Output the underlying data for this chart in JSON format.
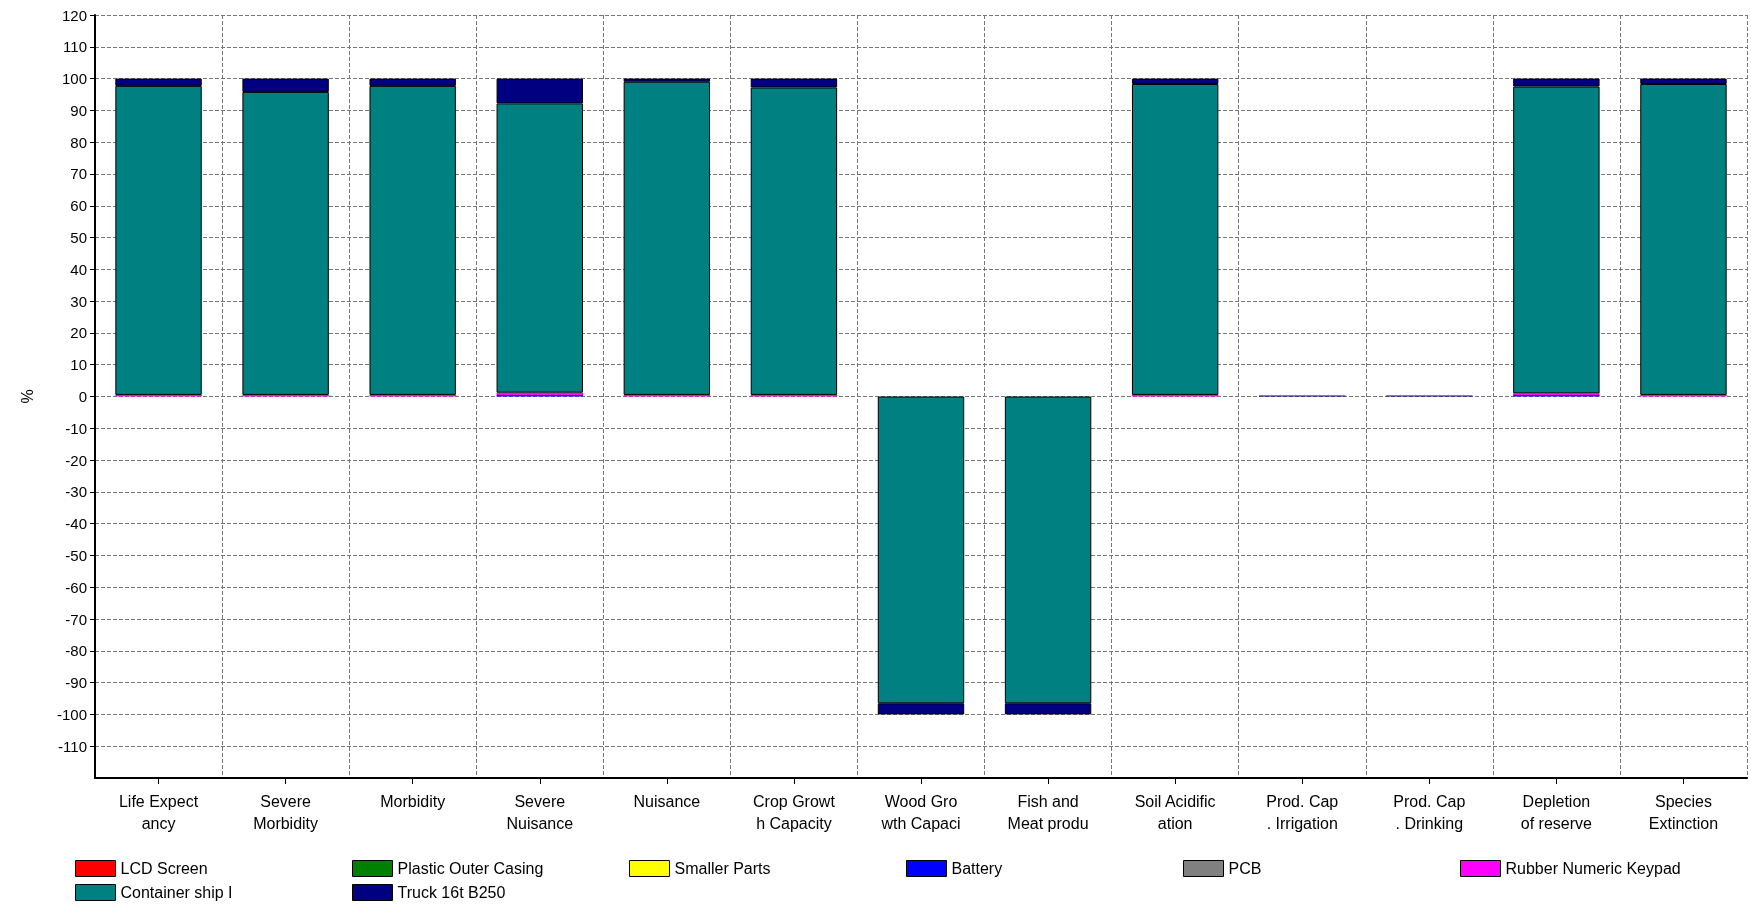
{
  "chart_data": {
    "type": "bar",
    "stacked": true,
    "ylabel": "%",
    "categories": [
      "Life Expect\nancy",
      "Severe\nMorbidity",
      "Morbidity",
      "Severe\nNuisance",
      "Nuisance",
      "Crop Growt\nh Capacity",
      "Wood Gro\nwth Capaci",
      "Fish and\nMeat produ",
      "Soil Acidific\nation",
      "Prod. Cap\n. Irrigation",
      "Prod. Cap\n. Drinking",
      "Depletion\nof reserve",
      "Species\nExtinction"
    ],
    "series": [
      {
        "name": "LCD Screen",
        "color": "#ff0000",
        "values": [
          null,
          null,
          null,
          null,
          null,
          null,
          null,
          null,
          null,
          null,
          null,
          null,
          null
        ]
      },
      {
        "name": "Plastic Outer Casing",
        "color": "#008000",
        "values": [
          null,
          null,
          null,
          null,
          null,
          null,
          null,
          null,
          null,
          null,
          null,
          null,
          null
        ]
      },
      {
        "name": "Smaller Parts",
        "color": "#ffff00",
        "values": [
          null,
          null,
          null,
          null,
          null,
          null,
          null,
          null,
          null,
          null,
          null,
          null,
          null
        ]
      },
      {
        "name": "Battery",
        "color": "#0000ff",
        "values": [
          null,
          null,
          null,
          0.5,
          null,
          null,
          null,
          null,
          null,
          null,
          null,
          0.5,
          null
        ]
      },
      {
        "name": "PCB",
        "color": "#808080",
        "values": [
          null,
          null,
          null,
          null,
          null,
          null,
          null,
          null,
          null,
          null,
          null,
          null,
          null
        ]
      },
      {
        "name": "Rubber Numeric Keypad",
        "color": "#ff00ff",
        "values": [
          0.5,
          0.5,
          0.5,
          0.7,
          0.5,
          0.5,
          null,
          null,
          0.5,
          null,
          null,
          0.5,
          0.5
        ]
      },
      {
        "name": "Container ship I",
        "color": "#008080",
        "values": [
          97.2,
          95.3,
          97.2,
          91,
          98.5,
          96.7,
          -96.5,
          -96.5,
          97.8,
          null,
          null,
          96.5,
          97.8
        ]
      },
      {
        "name": "Truck 16t B250",
        "color": "#000080",
        "values": [
          2.3,
          4.2,
          2.3,
          7.8,
          1,
          2.8,
          -3.5,
          -3.5,
          1.7,
          0.3,
          0.3,
          2.5,
          1.7
        ]
      }
    ],
    "ylim": [
      -120,
      120
    ],
    "yticks": [
      120,
      110,
      100,
      90,
      80,
      70,
      60,
      50,
      40,
      30,
      20,
      10,
      0,
      -10,
      -20,
      -30,
      -40,
      -50,
      -60,
      -70,
      -80,
      -90,
      -100,
      -110
    ],
    "grid": true,
    "legend": "bottom"
  }
}
